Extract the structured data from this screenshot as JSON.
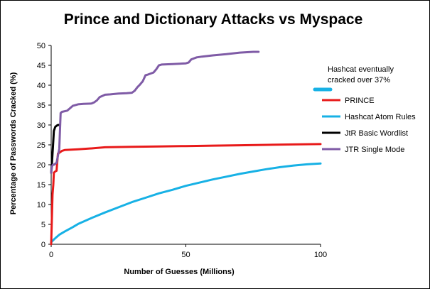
{
  "chart_data": {
    "type": "line",
    "title": "Prince and Dictionary Attacks vs Myspace",
    "xlabel": "Number of Guesses (Millions)",
    "ylabel": "Percentage of Passwords Cracked (%)",
    "xlim": [
      0,
      100
    ],
    "ylim": [
      0,
      50
    ],
    "x_ticks": [
      "0",
      "50",
      "100"
    ],
    "y_ticks": [
      "0",
      "5",
      "10",
      "15",
      "20",
      "25",
      "30",
      "35",
      "40",
      "45",
      "50"
    ],
    "grid": false,
    "legend_position": "right",
    "annotation": {
      "text_lines": [
        "Hashcat eventually",
        "cracked over 37%"
      ],
      "color": "#17B1E5"
    },
    "series": [
      {
        "name": "PRINCE",
        "color": "#E81A1A",
        "x": [
          0,
          0.5,
          0.8,
          1,
          1.5,
          2,
          2.5,
          3,
          4,
          5,
          10,
          15,
          20,
          30,
          40,
          50,
          60,
          70,
          80,
          90,
          100
        ],
        "y": [
          0,
          12.5,
          15,
          18,
          18.3,
          18.5,
          22.8,
          23,
          23.5,
          23.7,
          23.9,
          24.1,
          24.4,
          24.5,
          24.6,
          24.7,
          24.8,
          24.9,
          25.0,
          25.1,
          25.2
        ]
      },
      {
        "name": "Hashcat Atom Rules",
        "color": "#17B1E5",
        "x": [
          0,
          1,
          2,
          3,
          5,
          8,
          10,
          15,
          20,
          25,
          30,
          35,
          40,
          45,
          50,
          55,
          60,
          65,
          70,
          75,
          80,
          85,
          90,
          95,
          100
        ],
        "y": [
          0.5,
          1.2,
          1.8,
          2.4,
          3.2,
          4.3,
          5.1,
          6.6,
          8.0,
          9.3,
          10.6,
          11.7,
          12.8,
          13.7,
          14.7,
          15.5,
          16.3,
          17.0,
          17.7,
          18.3,
          18.9,
          19.4,
          19.8,
          20.1,
          20.3
        ]
      },
      {
        "name": "JtR Basic Wordlist",
        "color": "#000000",
        "x": [
          0,
          0.3,
          0.6,
          1,
          1.5,
          2,
          2.5,
          3
        ],
        "y": [
          18,
          20.5,
          24,
          28.5,
          29.5,
          29.8,
          30,
          30
        ]
      },
      {
        "name": "JTR Single Mode",
        "color": "#7F5BA6",
        "x": [
          0,
          0.3,
          0.6,
          1,
          2,
          3,
          3.5,
          4,
          6,
          8,
          10,
          12,
          15,
          16,
          17,
          18,
          19,
          20,
          22,
          25,
          28,
          30,
          31,
          32,
          33,
          34,
          35,
          36,
          38,
          39,
          40,
          41,
          45,
          50,
          51,
          52,
          54,
          56,
          60,
          65,
          70,
          75,
          77
        ],
        "y": [
          18,
          19.5,
          20,
          20,
          20.5,
          24,
          33,
          33.3,
          33.6,
          34.8,
          35.2,
          35.3,
          35.4,
          35.7,
          36.2,
          37.0,
          37.3,
          37.6,
          37.7,
          37.9,
          38.0,
          38.1,
          38.6,
          39.5,
          40.2,
          41.0,
          42.5,
          42.7,
          43.2,
          44.0,
          45.0,
          45.2,
          45.3,
          45.5,
          45.7,
          46.5,
          47.0,
          47.2,
          47.5,
          47.8,
          48.2,
          48.4,
          48.4
        ]
      }
    ]
  }
}
